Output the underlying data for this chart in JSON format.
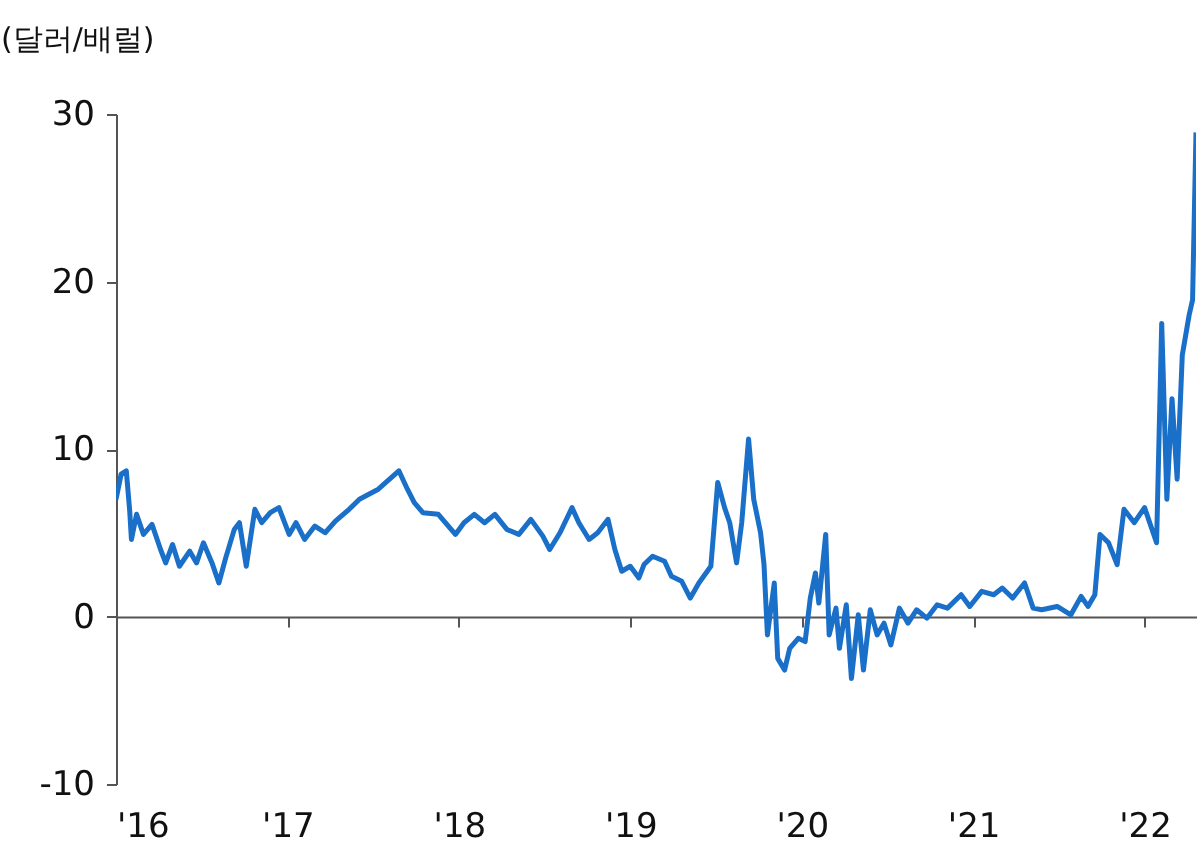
{
  "chart_data": {
    "type": "line",
    "ylabel": "(달러/배럴)",
    "x": [
      2016.0,
      2016.03,
      2016.06,
      2016.08,
      2016.09,
      2016.12,
      2016.16,
      2016.21,
      2016.26,
      2016.29,
      2016.33,
      2016.37,
      2016.43,
      2016.47,
      2016.51,
      2016.56,
      2016.6,
      2016.64,
      2016.69,
      2016.72,
      2016.76,
      2016.81,
      2016.85,
      2016.9,
      2016.95,
      2017.01,
      2017.05,
      2017.1,
      2017.16,
      2017.22,
      2017.28,
      2017.36,
      2017.42,
      2017.53,
      2017.65,
      2017.7,
      2017.74,
      2017.79,
      2017.88,
      2017.98,
      2018.03,
      2018.09,
      2018.15,
      2018.21,
      2018.28,
      2018.35,
      2018.42,
      2018.49,
      2018.53,
      2018.59,
      2018.66,
      2018.7,
      2018.76,
      2018.81,
      2018.87,
      2018.91,
      2018.95,
      2019.0,
      2019.05,
      2019.08,
      2019.13,
      2019.2,
      2019.24,
      2019.3,
      2019.35,
      2019.4,
      2019.47,
      2019.51,
      2019.55,
      2019.58,
      2019.62,
      2019.65,
      2019.69,
      2019.72,
      2019.76,
      2019.78,
      2019.8,
      2019.84,
      2019.86,
      2019.9,
      2019.93,
      2019.98,
      2020.02,
      2020.05,
      2020.08,
      2020.1,
      2020.14,
      2020.16,
      2020.2,
      2020.22,
      2020.26,
      2020.29,
      2020.33,
      2020.36,
      2020.4,
      2020.44,
      2020.48,
      2020.52,
      2020.57,
      2020.62,
      2020.67,
      2020.73,
      2020.79,
      2020.85,
      2020.93,
      2020.98,
      2021.05,
      2021.12,
      2021.17,
      2021.23,
      2021.3,
      2021.35,
      2021.4,
      2021.49,
      2021.57,
      2021.63,
      2021.67,
      2021.71,
      2021.74,
      2021.79,
      2021.84,
      2021.88,
      2021.94,
      2022.0,
      2022.07,
      2022.1,
      2022.13,
      2022.16,
      2022.19,
      2022.22,
      2022.26,
      2022.28,
      2022.3
    ],
    "series": [
      {
        "color": "#1a6fc9",
        "values": [
          7.0,
          8.5,
          8.7,
          6.3,
          4.6,
          6.1,
          4.9,
          5.5,
          4.0,
          3.2,
          4.3,
          3.0,
          3.9,
          3.2,
          4.4,
          3.2,
          2.0,
          3.5,
          5.2,
          5.6,
          3.0,
          6.4,
          5.6,
          6.2,
          6.5,
          4.9,
          5.6,
          4.6,
          5.4,
          5.0,
          5.7,
          6.4,
          7.0,
          7.6,
          8.7,
          7.6,
          6.8,
          6.2,
          6.1,
          4.9,
          5.6,
          6.1,
          5.6,
          6.1,
          5.2,
          4.9,
          5.8,
          4.8,
          4.0,
          5.0,
          6.5,
          5.6,
          4.6,
          5.0,
          5.8,
          4.0,
          2.7,
          3.0,
          2.3,
          3.1,
          3.6,
          3.3,
          2.4,
          2.1,
          1.1,
          2.0,
          3.0,
          8.0,
          6.5,
          5.6,
          3.2,
          5.6,
          10.6,
          7.0,
          5.0,
          3.1,
          -1.1,
          2.0,
          -2.5,
          -3.2,
          -1.9,
          -1.3,
          -1.5,
          1.1,
          2.6,
          0.8,
          4.9,
          -1.1,
          0.5,
          -1.9,
          0.7,
          -3.7,
          0.1,
          -3.2,
          0.4,
          -1.1,
          -0.4,
          -1.7,
          0.5,
          -0.4,
          0.4,
          -0.1,
          0.7,
          0.5,
          1.3,
          0.6,
          1.5,
          1.3,
          1.7,
          1.1,
          2.0,
          0.5,
          0.4,
          0.6,
          0.1,
          1.2,
          0.6,
          1.3,
          4.9,
          4.4,
          3.1,
          6.4,
          5.6,
          6.5,
          4.4,
          17.5,
          7.0,
          13.0,
          8.2,
          15.6,
          18.0,
          18.9,
          28.9
        ]
      }
    ],
    "xlim": [
      2016,
      2022.3
    ],
    "xticks": [
      {
        "value": 2016,
        "label": "'16"
      },
      {
        "value": 2017,
        "label": "'17"
      },
      {
        "value": 2018,
        "label": "'18"
      },
      {
        "value": 2019,
        "label": "'19"
      },
      {
        "value": 2020,
        "label": "'20"
      },
      {
        "value": 2021,
        "label": "'21"
      },
      {
        "value": 2022,
        "label": "'22"
      }
    ],
    "ylim": [
      -10,
      30
    ],
    "yticks": [
      -10,
      0,
      10,
      20,
      30
    ],
    "line_style": "solid"
  }
}
